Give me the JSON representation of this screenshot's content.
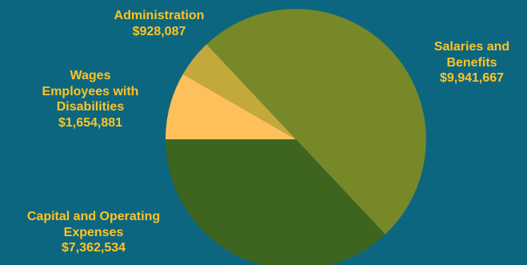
{
  "chart_data": {
    "type": "pie",
    "start_angle_deg": 180,
    "direction": "clockwise",
    "slices": [
      {
        "label_lines": [
          "Wages",
          "Employees with",
          "Disabilities"
        ],
        "value_label": "$1,654,881",
        "value": 1654881,
        "color": "#ffc05b"
      },
      {
        "label_lines": [
          "Administration"
        ],
        "value_label": "$928,087",
        "value": 928087,
        "color": "#c3a83b"
      },
      {
        "label_lines": [
          "Salaries and",
          "Benefits"
        ],
        "value_label": "$9,941,667",
        "value": 9941667,
        "color": "#778829"
      },
      {
        "label_lines": [
          "Capital and Operating",
          "Expenses"
        ],
        "value_label": "$7,362,534",
        "value": 7362534,
        "color": "#3d6520"
      }
    ]
  }
}
